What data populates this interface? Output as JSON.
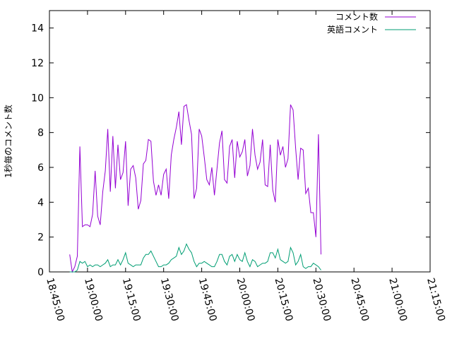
{
  "chart_data": {
    "type": "line",
    "title": "",
    "xlabel": "",
    "ylabel": "1秒毎のコメント数",
    "xlim": [
      "18:45:00",
      "21:15:00"
    ],
    "ylim": [
      0,
      15
    ],
    "x_ticks": [
      "18:45:00",
      "19:00:00",
      "19:15:00",
      "19:30:00",
      "19:45:00",
      "20:00:00",
      "20:15:00",
      "20:30:00",
      "20:45:00",
      "21:00:00",
      "21:15:00"
    ],
    "y_ticks": [
      0,
      2,
      4,
      6,
      8,
      10,
      12,
      14
    ],
    "grid": false,
    "legend_position": "top-right",
    "series": [
      {
        "name": "コメント数",
        "color": "#9400d3",
        "points": [
          [
            "18:53:00",
            1.0
          ],
          [
            "18:54:00",
            0.0
          ],
          [
            "18:55:00",
            0.3
          ],
          [
            "18:56:00",
            0.9
          ],
          [
            "18:57:00",
            7.2
          ],
          [
            "18:58:00",
            2.6
          ],
          [
            "18:59:00",
            2.7
          ],
          [
            "19:00:00",
            2.7
          ],
          [
            "19:01:00",
            2.6
          ],
          [
            "19:02:00",
            3.3
          ],
          [
            "19:03:00",
            5.8
          ],
          [
            "19:04:00",
            3.2
          ],
          [
            "19:05:00",
            2.7
          ],
          [
            "19:06:00",
            4.6
          ],
          [
            "19:07:00",
            5.8
          ],
          [
            "19:08:00",
            8.2
          ],
          [
            "19:09:00",
            4.6
          ],
          [
            "19:10:00",
            7.8
          ],
          [
            "19:11:00",
            4.8
          ],
          [
            "19:12:00",
            7.3
          ],
          [
            "19:13:00",
            5.3
          ],
          [
            "19:14:00",
            5.7
          ],
          [
            "19:15:00",
            7.5
          ],
          [
            "19:16:00",
            3.8
          ],
          [
            "19:17:00",
            5.9
          ],
          [
            "19:18:00",
            6.1
          ],
          [
            "19:19:00",
            5.4
          ],
          [
            "19:20:00",
            3.6
          ],
          [
            "19:21:00",
            4.1
          ],
          [
            "19:22:00",
            6.2
          ],
          [
            "19:23:00",
            6.4
          ],
          [
            "19:24:00",
            7.6
          ],
          [
            "19:25:00",
            7.5
          ],
          [
            "19:26:00",
            5.2
          ],
          [
            "19:27:00",
            4.4
          ],
          [
            "19:28:00",
            5.0
          ],
          [
            "19:29:00",
            4.4
          ],
          [
            "19:30:00",
            5.6
          ],
          [
            "19:31:00",
            5.9
          ],
          [
            "19:32:00",
            4.2
          ],
          [
            "19:33:00",
            6.7
          ],
          [
            "19:34:00",
            7.6
          ],
          [
            "19:35:00",
            8.3
          ],
          [
            "19:36:00",
            9.2
          ],
          [
            "19:37:00",
            7.3
          ],
          [
            "19:38:00",
            9.5
          ],
          [
            "19:39:00",
            9.6
          ],
          [
            "19:40:00",
            8.7
          ],
          [
            "19:41:00",
            7.9
          ],
          [
            "19:42:00",
            4.2
          ],
          [
            "19:43:00",
            4.8
          ],
          [
            "19:44:00",
            8.2
          ],
          [
            "19:45:00",
            7.8
          ],
          [
            "19:46:00",
            6.6
          ],
          [
            "19:47:00",
            5.3
          ],
          [
            "19:48:00",
            5.0
          ],
          [
            "19:49:00",
            6.0
          ],
          [
            "19:50:00",
            4.4
          ],
          [
            "19:51:00",
            5.9
          ],
          [
            "19:52:00",
            7.4
          ],
          [
            "19:53:00",
            8.1
          ],
          [
            "19:54:00",
            5.3
          ],
          [
            "19:55:00",
            5.1
          ],
          [
            "19:56:00",
            7.2
          ],
          [
            "19:57:00",
            7.6
          ],
          [
            "19:58:00",
            5.4
          ],
          [
            "19:59:00",
            7.5
          ],
          [
            "20:00:00",
            6.6
          ],
          [
            "20:01:00",
            6.9
          ],
          [
            "20:02:00",
            7.6
          ],
          [
            "20:03:00",
            5.5
          ],
          [
            "20:04:00",
            6.1
          ],
          [
            "20:05:00",
            8.2
          ],
          [
            "20:06:00",
            6.7
          ],
          [
            "20:07:00",
            5.9
          ],
          [
            "20:08:00",
            6.3
          ],
          [
            "20:09:00",
            7.6
          ],
          [
            "20:10:00",
            5.0
          ],
          [
            "20:11:00",
            4.9
          ],
          [
            "20:12:00",
            7.3
          ],
          [
            "20:13:00",
            4.7
          ],
          [
            "20:14:00",
            4.0
          ],
          [
            "20:15:00",
            7.6
          ],
          [
            "20:16:00",
            6.7
          ],
          [
            "20:17:00",
            7.2
          ],
          [
            "20:18:00",
            6.0
          ],
          [
            "20:19:00",
            6.5
          ],
          [
            "20:20:00",
            9.6
          ],
          [
            "20:21:00",
            9.3
          ],
          [
            "20:22:00",
            7.1
          ],
          [
            "20:23:00",
            5.3
          ],
          [
            "20:24:00",
            7.1
          ],
          [
            "20:25:00",
            7.0
          ],
          [
            "20:26:00",
            4.5
          ],
          [
            "20:27:00",
            4.8
          ],
          [
            "20:28:00",
            3.4
          ],
          [
            "20:29:00",
            3.4
          ],
          [
            "20:30:00",
            2.0
          ],
          [
            "20:31:00",
            7.9
          ],
          [
            "20:32:00",
            1.0
          ]
        ]
      },
      {
        "name": "英語コメント",
        "color": "#009e73",
        "points": [
          [
            "18:53:00",
            0.0
          ],
          [
            "18:54:00",
            0.0
          ],
          [
            "18:55:00",
            0.0
          ],
          [
            "18:56:00",
            0.1
          ],
          [
            "18:57:00",
            0.6
          ],
          [
            "18:58:00",
            0.5
          ],
          [
            "18:59:00",
            0.6
          ],
          [
            "19:00:00",
            0.3
          ],
          [
            "19:01:00",
            0.4
          ],
          [
            "19:02:00",
            0.3
          ],
          [
            "19:03:00",
            0.4
          ],
          [
            "19:04:00",
            0.4
          ],
          [
            "19:05:00",
            0.3
          ],
          [
            "19:06:00",
            0.4
          ],
          [
            "19:07:00",
            0.5
          ],
          [
            "19:08:00",
            0.7
          ],
          [
            "19:09:00",
            0.3
          ],
          [
            "19:10:00",
            0.4
          ],
          [
            "19:11:00",
            0.4
          ],
          [
            "19:12:00",
            0.7
          ],
          [
            "19:13:00",
            0.4
          ],
          [
            "19:14:00",
            0.7
          ],
          [
            "19:15:00",
            1.1
          ],
          [
            "19:16:00",
            0.5
          ],
          [
            "19:17:00",
            0.4
          ],
          [
            "19:18:00",
            0.3
          ],
          [
            "19:19:00",
            0.4
          ],
          [
            "19:20:00",
            0.4
          ],
          [
            "19:21:00",
            0.4
          ],
          [
            "19:22:00",
            0.8
          ],
          [
            "19:23:00",
            1.0
          ],
          [
            "19:24:00",
            1.0
          ],
          [
            "19:25:00",
            1.2
          ],
          [
            "19:26:00",
            0.9
          ],
          [
            "19:27:00",
            0.6
          ],
          [
            "19:28:00",
            0.3
          ],
          [
            "19:29:00",
            0.3
          ],
          [
            "19:30:00",
            0.4
          ],
          [
            "19:31:00",
            0.4
          ],
          [
            "19:32:00",
            0.5
          ],
          [
            "19:33:00",
            0.7
          ],
          [
            "19:34:00",
            0.8
          ],
          [
            "19:35:00",
            0.9
          ],
          [
            "19:36:00",
            1.4
          ],
          [
            "19:37:00",
            1.0
          ],
          [
            "19:38:00",
            1.2
          ],
          [
            "19:39:00",
            1.6
          ],
          [
            "19:40:00",
            1.3
          ],
          [
            "19:41:00",
            1.1
          ],
          [
            "19:42:00",
            0.6
          ],
          [
            "19:43:00",
            0.3
          ],
          [
            "19:44:00",
            0.5
          ],
          [
            "19:45:00",
            0.5
          ],
          [
            "19:46:00",
            0.6
          ],
          [
            "19:47:00",
            0.5
          ],
          [
            "19:48:00",
            0.4
          ],
          [
            "19:49:00",
            0.3
          ],
          [
            "19:50:00",
            0.3
          ],
          [
            "19:51:00",
            0.6
          ],
          [
            "19:52:00",
            1.0
          ],
          [
            "19:53:00",
            1.0
          ],
          [
            "19:54:00",
            0.6
          ],
          [
            "19:55:00",
            0.4
          ],
          [
            "19:56:00",
            0.9
          ],
          [
            "19:57:00",
            1.0
          ],
          [
            "19:58:00",
            0.6
          ],
          [
            "19:59:00",
            1.0
          ],
          [
            "20:00:00",
            0.7
          ],
          [
            "20:01:00",
            0.6
          ],
          [
            "20:02:00",
            1.1
          ],
          [
            "20:03:00",
            0.6
          ],
          [
            "20:04:00",
            0.3
          ],
          [
            "20:05:00",
            0.7
          ],
          [
            "20:06:00",
            0.6
          ],
          [
            "20:07:00",
            0.3
          ],
          [
            "20:08:00",
            0.4
          ],
          [
            "20:09:00",
            0.5
          ],
          [
            "20:10:00",
            0.5
          ],
          [
            "20:11:00",
            0.6
          ],
          [
            "20:12:00",
            1.1
          ],
          [
            "20:13:00",
            1.1
          ],
          [
            "20:14:00",
            0.8
          ],
          [
            "20:15:00",
            1.3
          ],
          [
            "20:16:00",
            0.7
          ],
          [
            "20:17:00",
            0.6
          ],
          [
            "20:18:00",
            0.5
          ],
          [
            "20:19:00",
            0.6
          ],
          [
            "20:20:00",
            1.4
          ],
          [
            "20:21:00",
            1.1
          ],
          [
            "20:22:00",
            0.4
          ],
          [
            "20:23:00",
            0.6
          ],
          [
            "20:24:00",
            1.0
          ],
          [
            "20:25:00",
            0.3
          ],
          [
            "20:26:00",
            0.2
          ],
          [
            "20:27:00",
            0.3
          ],
          [
            "20:28:00",
            0.3
          ],
          [
            "20:29:00",
            0.5
          ],
          [
            "20:30:00",
            0.4
          ],
          [
            "20:31:00",
            0.3
          ],
          [
            "20:32:00",
            0.1
          ]
        ]
      }
    ]
  }
}
